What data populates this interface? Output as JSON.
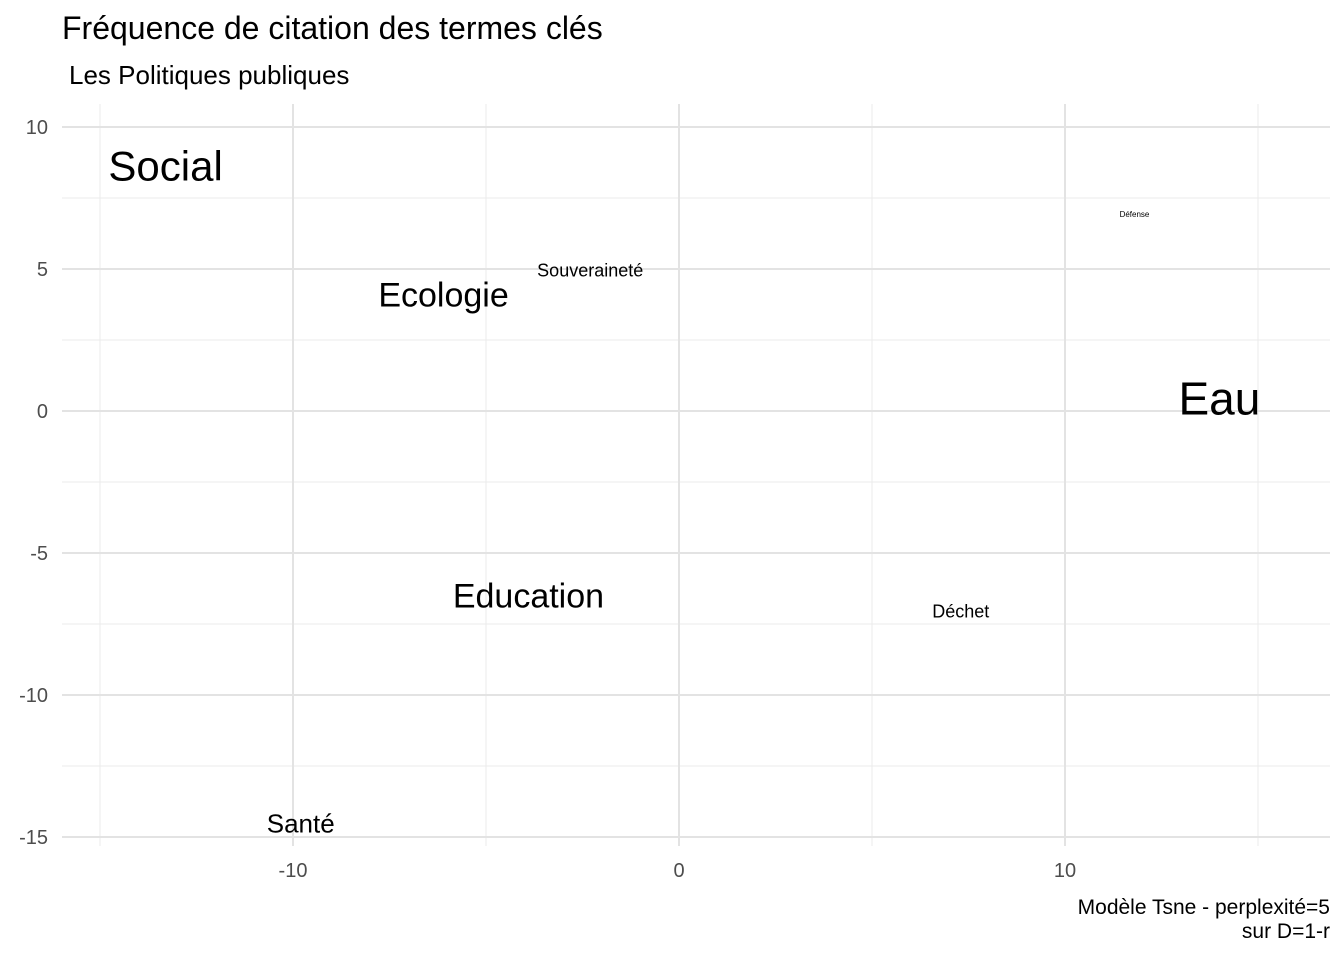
{
  "chart_data": {
    "type": "scatter",
    "title": "Fréquence de citation des termes clés",
    "subtitle": "Les Politiques publiques",
    "caption": [
      "Modèle Tsne - perplexité=5",
      "sur D=1-r"
    ],
    "xlabel": "",
    "ylabel": "",
    "xlim": [
      -15,
      16
    ],
    "ylim": [
      -15,
      10
    ],
    "x_ticks": [
      -10,
      0,
      10
    ],
    "y_ticks": [
      10,
      5,
      0,
      -5,
      -10,
      -15
    ],
    "grid": true,
    "points": [
      {
        "label": "Social",
        "x": -13.3,
        "y": 8.5,
        "weight": 5
      },
      {
        "label": "Ecologie",
        "x": -6.1,
        "y": 4.0,
        "weight": 4
      },
      {
        "label": "Souveraineté",
        "x": -2.3,
        "y": 4.9,
        "weight": 2
      },
      {
        "label": "Défense",
        "x": 11.8,
        "y": 6.9,
        "weight": 1
      },
      {
        "label": "Eau",
        "x": 14.0,
        "y": 0.3,
        "weight": 6
      },
      {
        "label": "Education",
        "x": -3.9,
        "y": -6.6,
        "weight": 4
      },
      {
        "label": "Déchet",
        "x": 7.3,
        "y": -7.1,
        "weight": 2
      },
      {
        "label": "Santé",
        "x": -9.8,
        "y": -14.6,
        "weight": 3
      }
    ]
  }
}
